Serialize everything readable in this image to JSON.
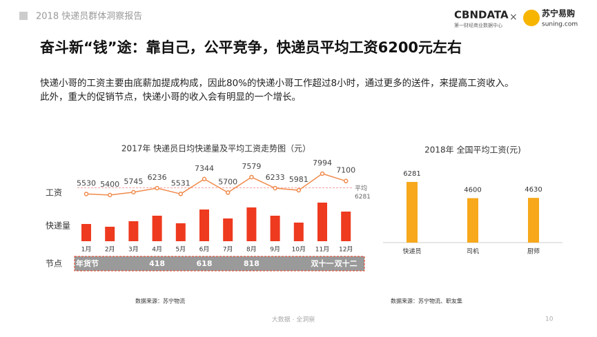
{
  "header": {
    "report": "2018 快递员群体洞察报告",
    "logo_left": "CBNDATA",
    "logo_left_sub": "第一财经商业数据中心",
    "times": "×",
    "logo_right": "苏宁易购",
    "logo_right_sub": "suning.com"
  },
  "headline": "奋斗新“钱”途：靠自己，公平竞争，快递员平均工资6200元左右",
  "paragraph": [
    "快递小哥的工资主要由底薪加提成构成，因此80%的快递小哥工作超过8小时，通过更多的送件，来提高工资收入。",
    "此外，重大的促销节点，快递小哥的收入会有明显的一个增长。"
  ],
  "chart_data": [
    {
      "type": "line",
      "title": "2017年 快递员日均快递量及平均工资走势图（元）",
      "categories": [
        "1月",
        "2月",
        "3月",
        "4月",
        "5月",
        "6月",
        "7月",
        "8月",
        "9月",
        "10月",
        "11月",
        "12月"
      ],
      "series": [
        {
          "name": "工资",
          "color": "#f08a4b",
          "values": [
            5530,
            5400,
            5745,
            6236,
            5531,
            7344,
            5700,
            7579,
            6233,
            5981,
            7994,
            7100
          ]
        },
        {
          "name": "快递量",
          "type": "bar",
          "color": "#ee3a1f",
          "values": [
            25,
            21,
            29,
            37,
            26,
            46,
            33,
            49,
            37,
            27,
            56,
            43
          ]
        }
      ],
      "average": {
        "label": "平均",
        "value": 6281,
        "color": "#f4a0a0"
      },
      "nodes": {
        "name": "节点",
        "labels": [
          "年货节",
          null,
          null,
          "418",
          null,
          "618",
          null,
          "818",
          null,
          null,
          "双十一",
          "双十二"
        ]
      },
      "source": "数据来源：苏宁物流"
    },
    {
      "type": "bar",
      "title": "2018年 全国平均工资(元)",
      "categories": [
        "快递员",
        "司机",
        "厨师"
      ],
      "values": [
        6281,
        4600,
        4630
      ],
      "color": "#f7a81b",
      "source": "数据来源：苏宁物流、职友集"
    }
  ],
  "footer": {
    "slogan": "大数据 · 全洞察",
    "page": "10"
  }
}
